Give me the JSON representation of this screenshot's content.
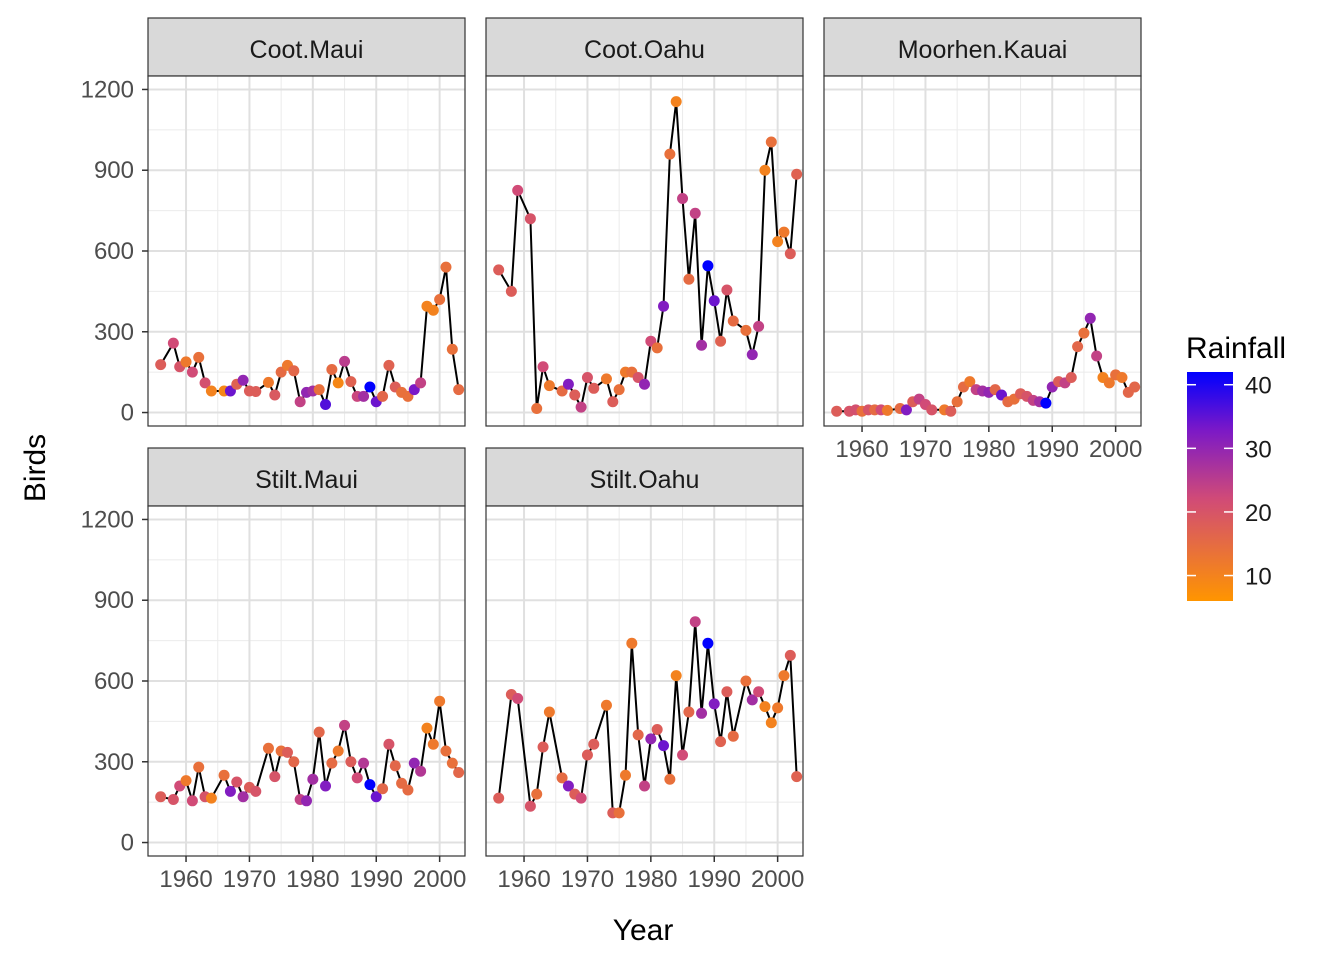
{
  "chart_data": {
    "type": "line",
    "xlabel": "Year",
    "ylabel": "Birds",
    "xlim": [
      1954,
      2004
    ],
    "ylim": [
      -50,
      1250
    ],
    "x_ticks": [
      1960,
      1970,
      1980,
      1990,
      2000
    ],
    "y_ticks": [
      0,
      300,
      600,
      900,
      1200
    ],
    "grid": true,
    "legend": {
      "title": "Rainfall",
      "placement": "right",
      "ticks": [
        10,
        20,
        30,
        40
      ],
      "min": 6,
      "max": 42,
      "color_low": "#ff9500",
      "color_mid": "#d04a78",
      "color_high": "#0000ff"
    },
    "panels": [
      {
        "name": "Coot.Maui",
        "x": [
          1956,
          1958,
          1959,
          1960,
          1961,
          1962,
          1963,
          1964,
          1966,
          1967,
          1968,
          1969,
          1970,
          1971,
          1973,
          1974,
          1975,
          1976,
          1977,
          1978,
          1979,
          1980,
          1981,
          1982,
          1983,
          1984,
          1985,
          1986,
          1987,
          1988,
          1989,
          1990,
          1991,
          1992,
          1993,
          1994,
          1995,
          1996,
          1997,
          1998,
          1999,
          2000,
          2001,
          2002,
          2003
        ],
        "y": [
          178,
          258,
          170,
          188,
          150,
          205,
          110,
          80,
          80,
          80,
          105,
          120,
          80,
          78,
          112,
          65,
          150,
          175,
          155,
          40,
          75,
          80,
          85,
          30,
          160,
          110,
          190,
          115,
          60,
          60,
          95,
          40,
          60,
          175,
          95,
          75,
          60,
          85,
          110,
          395,
          380,
          420,
          540,
          235,
          85
        ],
        "rainfall": [
          18,
          22,
          20,
          12,
          22,
          14,
          21,
          10,
          9,
          34,
          17,
          30,
          18,
          18,
          12,
          19,
          15,
          12,
          16,
          24,
          30,
          28,
          14,
          36,
          15,
          9,
          25,
          17,
          23,
          28,
          42,
          34,
          16,
          17,
          18,
          14,
          14,
          33,
          24,
          10,
          10,
          14,
          14,
          14,
          15
        ]
      },
      {
        "name": "Coot.Oahu",
        "x": [
          1956,
          1958,
          1959,
          1961,
          1962,
          1963,
          1964,
          1966,
          1967,
          1968,
          1969,
          1970,
          1971,
          1973,
          1974,
          1975,
          1976,
          1977,
          1978,
          1979,
          1980,
          1981,
          1982,
          1983,
          1984,
          1985,
          1986,
          1987,
          1988,
          1989,
          1990,
          1991,
          1992,
          1993,
          1995,
          1996,
          1997,
          1998,
          1999,
          2000,
          2001,
          2002,
          2003
        ],
        "y": [
          530,
          450,
          825,
          720,
          15,
          170,
          100,
          80,
          105,
          65,
          20,
          130,
          90,
          125,
          40,
          85,
          150,
          150,
          130,
          105,
          265,
          240,
          395,
          960,
          1155,
          795,
          495,
          740,
          250,
          545,
          415,
          265,
          455,
          340,
          305,
          215,
          320,
          900,
          1005,
          635,
          670,
          590,
          885
        ],
        "rainfall": [
          18,
          18,
          22,
          20,
          14,
          22,
          12,
          15,
          32,
          18,
          24,
          20,
          18,
          12,
          18,
          14,
          12,
          14,
          20,
          30,
          22,
          14,
          32,
          14,
          10,
          24,
          15,
          24,
          28,
          42,
          34,
          17,
          20,
          15,
          14,
          30,
          24,
          10,
          14,
          10,
          12,
          18,
          17
        ]
      },
      {
        "name": "Moorhen.Kauai",
        "x": [
          1956,
          1958,
          1959,
          1960,
          1961,
          1962,
          1963,
          1964,
          1966,
          1967,
          1968,
          1969,
          1970,
          1971,
          1973,
          1974,
          1975,
          1976,
          1977,
          1978,
          1979,
          1980,
          1981,
          1982,
          1983,
          1984,
          1985,
          1986,
          1987,
          1988,
          1989,
          1990,
          1991,
          1992,
          1993,
          1994,
          1995,
          1996,
          1997,
          1998,
          1999,
          2000,
          2001,
          2002,
          2003
        ],
        "y": [
          5,
          5,
          10,
          5,
          10,
          10,
          10,
          8,
          15,
          10,
          40,
          50,
          30,
          10,
          10,
          5,
          40,
          95,
          115,
          85,
          80,
          75,
          85,
          65,
          40,
          50,
          70,
          60,
          45,
          40,
          35,
          95,
          115,
          110,
          130,
          245,
          295,
          350,
          210,
          130,
          110,
          140,
          130,
          75,
          95
        ],
        "rainfall": [
          18,
          20,
          21,
          14,
          20,
          15,
          22,
          12,
          15,
          32,
          18,
          24,
          22,
          20,
          12,
          18,
          14,
          15,
          12,
          24,
          28,
          30,
          16,
          34,
          15,
          14,
          18,
          20,
          24,
          28,
          42,
          30,
          18,
          24,
          18,
          16,
          14,
          30,
          24,
          10,
          12,
          14,
          12,
          16,
          16
        ]
      },
      {
        "name": "Stilt.Maui",
        "x": [
          1956,
          1958,
          1959,
          1960,
          1961,
          1962,
          1963,
          1964,
          1966,
          1967,
          1968,
          1969,
          1970,
          1971,
          1973,
          1974,
          1975,
          1976,
          1977,
          1978,
          1979,
          1980,
          1981,
          1982,
          1983,
          1984,
          1985,
          1986,
          1987,
          1988,
          1989,
          1990,
          1991,
          1992,
          1993,
          1994,
          1995,
          1996,
          1997,
          1998,
          1999,
          2000,
          2001,
          2002,
          2003
        ],
        "y": [
          170,
          160,
          210,
          230,
          155,
          280,
          170,
          165,
          250,
          190,
          225,
          170,
          205,
          190,
          350,
          245,
          340,
          335,
          300,
          160,
          155,
          235,
          410,
          210,
          295,
          340,
          435,
          300,
          240,
          295,
          215,
          170,
          200,
          365,
          285,
          220,
          195,
          295,
          265,
          425,
          365,
          525,
          340,
          295,
          260
        ],
        "rainfall": [
          18,
          20,
          22,
          12,
          22,
          14,
          20,
          10,
          14,
          32,
          20,
          28,
          18,
          20,
          14,
          20,
          14,
          18,
          16,
          24,
          30,
          28,
          16,
          32,
          15,
          12,
          24,
          18,
          22,
          26,
          42,
          34,
          16,
          20,
          16,
          15,
          15,
          30,
          26,
          10,
          12,
          12,
          14,
          14,
          16
        ]
      },
      {
        "name": "Stilt.Oahu",
        "x": [
          1956,
          1958,
          1959,
          1961,
          1962,
          1963,
          1964,
          1966,
          1967,
          1968,
          1969,
          1970,
          1971,
          1973,
          1974,
          1975,
          1976,
          1977,
          1978,
          1979,
          1980,
          1981,
          1982,
          1983,
          1984,
          1985,
          1986,
          1987,
          1988,
          1989,
          1990,
          1991,
          1992,
          1993,
          1995,
          1996,
          1997,
          1998,
          1999,
          2000,
          2001,
          2002,
          2003
        ],
        "y": [
          165,
          550,
          535,
          135,
          180,
          355,
          485,
          240,
          210,
          180,
          165,
          325,
          365,
          510,
          110,
          110,
          250,
          740,
          400,
          210,
          385,
          420,
          360,
          235,
          620,
          325,
          485,
          820,
          480,
          740,
          515,
          375,
          560,
          395,
          600,
          530,
          560,
          505,
          445,
          500,
          620,
          695,
          245
        ],
        "rainfall": [
          18,
          18,
          22,
          20,
          14,
          18,
          12,
          15,
          32,
          18,
          22,
          18,
          18,
          12,
          18,
          14,
          12,
          12,
          16,
          24,
          30,
          18,
          34,
          14,
          10,
          22,
          16,
          24,
          28,
          42,
          32,
          17,
          18,
          15,
          14,
          28,
          22,
          10,
          10,
          12,
          12,
          18,
          17
        ]
      }
    ]
  }
}
